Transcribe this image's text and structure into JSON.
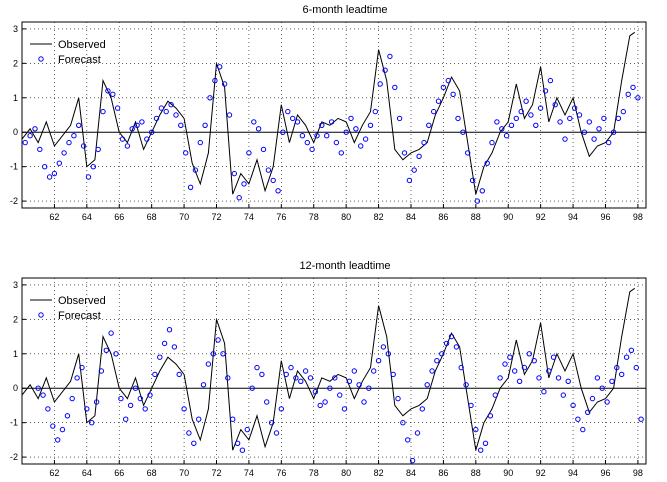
{
  "chart_data": [
    {
      "type": "line",
      "title": "6-month leadtime",
      "xlabel": "",
      "ylabel": "",
      "xlim": [
        1960,
        1998.5
      ],
      "ylim": [
        -2.2,
        3.2
      ],
      "x_ticks": [
        62,
        64,
        66,
        68,
        70,
        72,
        74,
        76,
        78,
        80,
        82,
        84,
        86,
        88,
        90,
        92,
        94,
        96,
        98
      ],
      "y_ticks": [
        -2,
        -1,
        0,
        1,
        2,
        3
      ],
      "grid": true,
      "zero_line": true,
      "legend": {
        "position": "top-left",
        "entries": [
          "Observed",
          "Forecast"
        ]
      },
      "series": [
        {
          "name": "Observed",
          "style": "line",
          "color": "#000000",
          "x": [
            1960,
            1960.5,
            1961,
            1961.5,
            1962,
            1962.5,
            1963,
            1963.5,
            1964,
            1964.5,
            1965,
            1965.5,
            1966,
            1966.5,
            1967,
            1967.5,
            1968,
            1968.5,
            1969,
            1969.5,
            1970,
            1970.5,
            1971,
            1971.5,
            1972,
            1972.5,
            1973,
            1973.5,
            1974,
            1974.5,
            1975,
            1975.5,
            1976,
            1976.5,
            1977,
            1977.5,
            1978,
            1978.5,
            1979,
            1979.5,
            1980,
            1980.5,
            1981,
            1981.5,
            1982,
            1982.5,
            1983,
            1983.5,
            1984,
            1984.5,
            1985,
            1985.5,
            1986,
            1986.5,
            1987,
            1987.5,
            1988,
            1988.5,
            1989,
            1989.5,
            1990,
            1990.5,
            1991,
            1991.5,
            1992,
            1992.5,
            1993,
            1993.5,
            1994,
            1994.5,
            1995,
            1995.5,
            1996,
            1996.5,
            1997,
            1997.5,
            1997.8
          ],
          "y": [
            -0.2,
            0.1,
            -0.3,
            0.3,
            -0.4,
            -0.1,
            0.2,
            1.0,
            -1.0,
            -0.8,
            1.5,
            1.0,
            0.0,
            -0.3,
            0.3,
            -0.5,
            0.0,
            0.5,
            0.9,
            0.7,
            0.4,
            -0.9,
            -1.5,
            -0.6,
            2.0,
            1.3,
            -1.8,
            -1.2,
            -1.5,
            -0.8,
            -1.7,
            -1.0,
            0.8,
            -0.3,
            0.5,
            0.2,
            -0.3,
            0.3,
            0.2,
            0.4,
            0.3,
            -0.3,
            0.2,
            0.6,
            2.4,
            1.5,
            -0.5,
            -0.8,
            -0.6,
            -0.5,
            -0.3,
            0.5,
            1.0,
            1.6,
            1.2,
            -0.3,
            -1.8,
            -1.0,
            -0.6,
            0.0,
            0.3,
            1.4,
            0.4,
            0.8,
            1.9,
            0.3,
            1.0,
            0.5,
            1.0,
            0.0,
            -0.7,
            -0.4,
            -0.3,
            0.0,
            1.5,
            2.8,
            2.9
          ]
        },
        {
          "name": "Forecast",
          "style": "markers",
          "color": "#0000ff",
          "x": [
            1960.2,
            1960.5,
            1960.8,
            1961.1,
            1961.4,
            1961.7,
            1962.0,
            1962.3,
            1962.6,
            1962.9,
            1963.2,
            1963.5,
            1963.8,
            1964.1,
            1964.4,
            1964.7,
            1965.0,
            1965.3,
            1965.6,
            1965.9,
            1966.2,
            1966.5,
            1966.8,
            1967.1,
            1967.4,
            1967.7,
            1968.0,
            1968.3,
            1968.6,
            1968.9,
            1969.2,
            1969.5,
            1969.8,
            1970.1,
            1970.4,
            1970.7,
            1971.0,
            1971.3,
            1971.6,
            1971.9,
            1972.2,
            1972.5,
            1972.8,
            1973.1,
            1973.4,
            1973.7,
            1974.0,
            1974.3,
            1974.6,
            1974.9,
            1975.2,
            1975.5,
            1975.8,
            1976.1,
            1976.4,
            1976.7,
            1977.0,
            1977.3,
            1977.6,
            1977.9,
            1978.2,
            1978.5,
            1978.8,
            1979.1,
            1979.4,
            1979.7,
            1980.0,
            1980.3,
            1980.6,
            1980.9,
            1981.2,
            1981.5,
            1981.8,
            1982.1,
            1982.4,
            1982.7,
            1983.0,
            1983.3,
            1983.6,
            1983.9,
            1984.2,
            1984.5,
            1984.8,
            1985.1,
            1985.4,
            1985.7,
            1986.0,
            1986.3,
            1986.6,
            1986.9,
            1987.2,
            1987.5,
            1987.8,
            1988.1,
            1988.4,
            1988.7,
            1989.0,
            1989.3,
            1989.6,
            1989.9,
            1990.2,
            1990.5,
            1990.8,
            1991.1,
            1991.4,
            1991.7,
            1992.0,
            1992.3,
            1992.6,
            1992.9,
            1993.2,
            1993.5,
            1993.8,
            1994.1,
            1994.4,
            1994.7,
            1995.0,
            1995.3,
            1995.6,
            1995.9,
            1996.2,
            1996.5,
            1996.8,
            1997.1,
            1997.4,
            1997.7,
            1998.0
          ],
          "y": [
            -0.3,
            -0.1,
            0.1,
            -0.5,
            -1.0,
            -1.3,
            -1.2,
            -0.9,
            -0.6,
            -0.3,
            -0.1,
            0.2,
            -0.4,
            -1.3,
            -1.0,
            -0.5,
            0.6,
            1.2,
            1.1,
            0.7,
            -0.2,
            -0.4,
            0.1,
            0.2,
            0.3,
            -0.2,
            0.0,
            0.4,
            0.7,
            0.6,
            0.8,
            0.5,
            0.2,
            -0.6,
            -1.6,
            -1.1,
            -0.3,
            0.2,
            1.0,
            1.5,
            1.9,
            1.4,
            0.5,
            -1.2,
            -1.9,
            -1.5,
            -0.6,
            0.3,
            0.1,
            -0.5,
            -1.1,
            -1.4,
            -1.7,
            0.0,
            0.6,
            0.4,
            0.3,
            -0.1,
            -0.3,
            -0.5,
            -0.1,
            0.2,
            -0.1,
            0.3,
            -0.3,
            -0.6,
            0.0,
            0.4,
            0.1,
            -0.4,
            -0.2,
            0.2,
            0.6,
            1.4,
            1.8,
            2.2,
            1.3,
            0.4,
            -0.6,
            -1.4,
            -1.1,
            -0.7,
            -0.3,
            0.2,
            0.6,
            0.9,
            1.3,
            1.5,
            1.1,
            0.4,
            0.0,
            -0.6,
            -1.4,
            -2.0,
            -1.7,
            -0.9,
            -0.3,
            0.3,
            0.1,
            -0.1,
            0.2,
            0.4,
            0.6,
            0.9,
            0.5,
            0.2,
            0.7,
            1.2,
            1.5,
            0.8,
            0.3,
            -0.2,
            0.4,
            0.7,
            0.5,
            0.0,
            0.3,
            -0.2,
            0.1,
            0.4,
            -0.3,
            0.0,
            0.4,
            0.6,
            1.1,
            1.3,
            1.0
          ]
        }
      ]
    },
    {
      "type": "line",
      "title": "12-month leadtime",
      "xlabel": "",
      "ylabel": "",
      "xlim": [
        1960,
        1998.5
      ],
      "ylim": [
        -2.2,
        3.2
      ],
      "x_ticks": [
        62,
        64,
        66,
        68,
        70,
        72,
        74,
        76,
        78,
        80,
        82,
        84,
        86,
        88,
        90,
        92,
        94,
        96,
        98
      ],
      "y_ticks": [
        -2,
        -1,
        0,
        1,
        2,
        3
      ],
      "grid": true,
      "zero_line": true,
      "legend": {
        "position": "top-left",
        "entries": [
          "Observed",
          "Forecast"
        ]
      },
      "series": [
        {
          "name": "Observed",
          "style": "line",
          "color": "#000000",
          "x": [
            1960,
            1960.5,
            1961,
            1961.5,
            1962,
            1962.5,
            1963,
            1963.5,
            1964,
            1964.5,
            1965,
            1965.5,
            1966,
            1966.5,
            1967,
            1967.5,
            1968,
            1968.5,
            1969,
            1969.5,
            1970,
            1970.5,
            1971,
            1971.5,
            1972,
            1972.5,
            1973,
            1973.5,
            1974,
            1974.5,
            1975,
            1975.5,
            1976,
            1976.5,
            1977,
            1977.5,
            1978,
            1978.5,
            1979,
            1979.5,
            1980,
            1980.5,
            1981,
            1981.5,
            1982,
            1982.5,
            1983,
            1983.5,
            1984,
            1984.5,
            1985,
            1985.5,
            1986,
            1986.5,
            1987,
            1987.5,
            1988,
            1988.5,
            1989,
            1989.5,
            1990,
            1990.5,
            1991,
            1991.5,
            1992,
            1992.5,
            1993,
            1993.5,
            1994,
            1994.5,
            1995,
            1995.5,
            1996,
            1996.5,
            1997,
            1997.5,
            1997.8
          ],
          "y": [
            -0.2,
            0.1,
            -0.3,
            0.3,
            -0.4,
            -0.1,
            0.2,
            1.0,
            -1.0,
            -0.8,
            1.5,
            1.0,
            0.0,
            -0.3,
            0.3,
            -0.5,
            0.0,
            0.5,
            0.9,
            0.7,
            0.4,
            -0.9,
            -1.5,
            -0.6,
            2.0,
            1.3,
            -1.8,
            -1.2,
            -1.5,
            -0.8,
            -1.7,
            -1.0,
            0.8,
            -0.3,
            0.5,
            0.2,
            -0.3,
            0.3,
            0.2,
            0.4,
            0.3,
            -0.3,
            0.2,
            0.6,
            2.4,
            1.5,
            -0.5,
            -0.8,
            -0.6,
            -0.5,
            -0.3,
            0.5,
            1.0,
            1.6,
            1.2,
            -0.3,
            -1.8,
            -1.0,
            -0.6,
            0.0,
            0.3,
            1.4,
            0.4,
            0.8,
            1.9,
            0.3,
            1.0,
            0.5,
            1.0,
            0.0,
            -0.7,
            -0.4,
            -0.3,
            0.0,
            1.5,
            2.8,
            2.9
          ]
        },
        {
          "name": "Forecast",
          "style": "markers",
          "color": "#0000ff",
          "x": [
            1961.0,
            1961.3,
            1961.6,
            1961.9,
            1962.2,
            1962.5,
            1962.8,
            1963.1,
            1963.4,
            1963.7,
            1964.0,
            1964.3,
            1964.6,
            1964.9,
            1965.2,
            1965.5,
            1965.8,
            1966.1,
            1966.4,
            1966.7,
            1967.0,
            1967.3,
            1967.6,
            1967.9,
            1968.2,
            1968.5,
            1968.8,
            1969.1,
            1969.4,
            1969.7,
            1970.0,
            1970.3,
            1970.6,
            1970.9,
            1971.2,
            1971.5,
            1971.8,
            1972.1,
            1972.4,
            1972.7,
            1973.0,
            1973.3,
            1973.6,
            1973.9,
            1974.2,
            1974.5,
            1974.8,
            1975.1,
            1975.4,
            1975.7,
            1976.0,
            1976.3,
            1976.6,
            1976.9,
            1977.2,
            1977.5,
            1977.8,
            1978.1,
            1978.4,
            1978.7,
            1979.0,
            1979.3,
            1979.6,
            1979.9,
            1980.2,
            1980.5,
            1980.8,
            1981.1,
            1981.4,
            1981.7,
            1982.0,
            1982.3,
            1982.6,
            1982.9,
            1983.2,
            1983.5,
            1983.8,
            1984.1,
            1984.4,
            1984.7,
            1985.0,
            1985.3,
            1985.6,
            1985.9,
            1986.2,
            1986.5,
            1986.8,
            1987.1,
            1987.4,
            1987.7,
            1988.0,
            1988.3,
            1988.6,
            1988.9,
            1989.2,
            1989.5,
            1989.8,
            1990.1,
            1990.4,
            1990.7,
            1991.0,
            1991.3,
            1991.6,
            1991.9,
            1992.2,
            1992.5,
            1992.8,
            1993.1,
            1993.4,
            1993.7,
            1994.0,
            1994.3,
            1994.6,
            1994.9,
            1995.2,
            1995.5,
            1995.8,
            1996.1,
            1996.4,
            1996.7,
            1997.0,
            1997.3,
            1997.6,
            1997.9,
            1998.2
          ],
          "y": [
            0.0,
            -0.2,
            -0.6,
            -1.1,
            -1.5,
            -1.2,
            -0.8,
            -0.3,
            0.3,
            0.6,
            -0.6,
            -1.0,
            -0.4,
            0.5,
            1.1,
            1.6,
            1.0,
            -0.3,
            -0.9,
            -0.5,
            0.0,
            -0.3,
            -0.6,
            -0.2,
            0.4,
            0.9,
            1.3,
            1.7,
            1.2,
            0.4,
            -0.6,
            -1.3,
            -1.6,
            -0.9,
            0.1,
            0.7,
            1.0,
            1.4,
            1.0,
            0.3,
            -0.9,
            -1.6,
            -1.8,
            -1.2,
            0.0,
            0.6,
            0.4,
            -0.4,
            -1.0,
            -1.3,
            -0.6,
            0.4,
            0.6,
            0.3,
            0.2,
            0.5,
            0.3,
            -0.1,
            -0.5,
            -0.4,
            0.0,
            0.3,
            -0.2,
            -0.6,
            0.2,
            0.5,
            0.1,
            -0.4,
            0.0,
            0.5,
            0.8,
            1.2,
            1.0,
            0.4,
            -0.3,
            -1.0,
            -1.5,
            -2.1,
            -1.3,
            -0.6,
            0.1,
            0.5,
            0.8,
            1.0,
            1.3,
            1.5,
            1.2,
            0.6,
            0.1,
            -0.5,
            -1.2,
            -1.8,
            -1.6,
            -0.8,
            -0.2,
            0.3,
            0.7,
            0.9,
            0.5,
            0.2,
            0.6,
            1.0,
            0.8,
            0.3,
            -0.1,
            0.5,
            0.9,
            0.3,
            -0.2,
            0.2,
            -0.5,
            -0.9,
            -1.2,
            -0.7,
            -0.3,
            0.3,
            0.0,
            -0.4,
            0.2,
            0.6,
            0.4,
            0.9,
            1.1,
            0.6,
            -0.9
          ]
        }
      ]
    }
  ]
}
